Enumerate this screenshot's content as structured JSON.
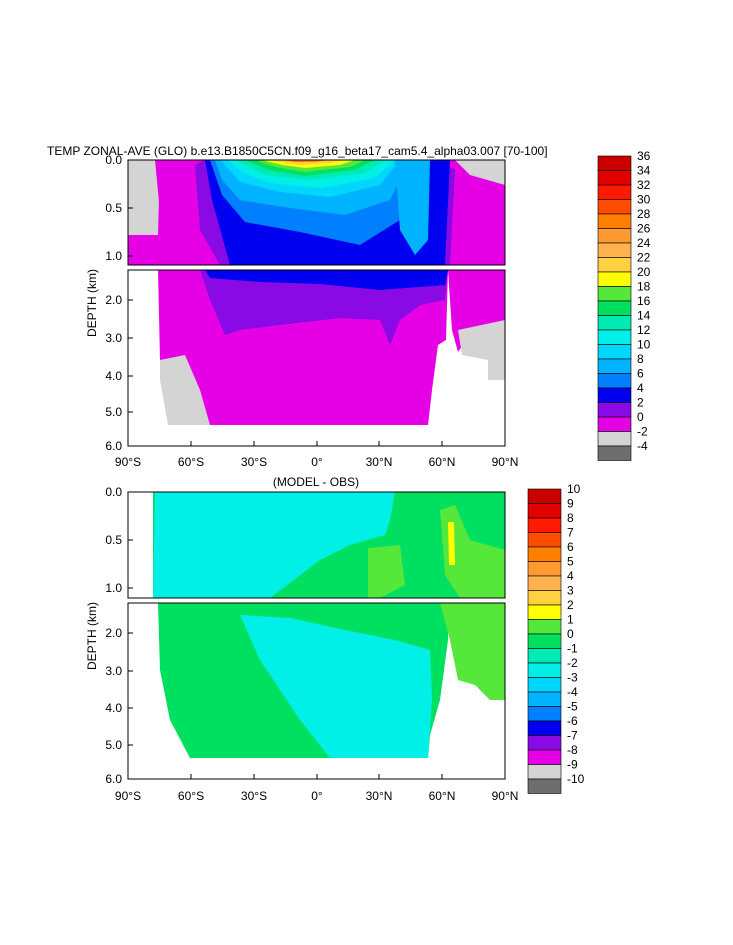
{
  "chart_data": [
    {
      "type": "heatmap",
      "title": "TEMP ZONAL-AVE (GLO) b.e13.B1850C5CN.f09_g16_beta17_cam5.4_alpha03.007 [70-100]",
      "ylabel": "DEPTH (km)",
      "x_ticks": [
        "90°S",
        "60°S",
        "30°S",
        "0°",
        "30°N",
        "60°N",
        "90°N"
      ],
      "y_ticks_upper": [
        "0.0",
        "0.5",
        "1.0"
      ],
      "y_ticks_lower": [
        "2.0",
        "3.0",
        "4.0",
        "5.0",
        "6.0"
      ],
      "xlim": [
        -90,
        90
      ],
      "ylim_km": [
        0,
        6
      ],
      "colorbar": {
        "levels": [
          "36",
          "34",
          "32",
          "30",
          "28",
          "26",
          "24",
          "22",
          "20",
          "18",
          "16",
          "14",
          "12",
          "10",
          "8",
          "6",
          "4",
          "2",
          "0",
          "-2",
          "-4"
        ],
        "colors": [
          "#c80000",
          "#e30000",
          "#ff1a00",
          "#ff4d00",
          "#ff8000",
          "#ff9a33",
          "#ffb24d",
          "#ffd040",
          "#ffff00",
          "#55e83a",
          "#00e060",
          "#00ebb4",
          "#00f0e8",
          "#00d7ff",
          "#00b3ff",
          "#0080ff",
          "#0000f0",
          "#8a0ae6",
          "#e600e6",
          "#d4d4d4",
          "#6e6e6e"
        ]
      }
    },
    {
      "type": "heatmap",
      "title": "(MODEL - OBS)",
      "ylabel": "DEPTH (km)",
      "x_ticks": [
        "90°S",
        "60°S",
        "30°S",
        "0°",
        "30°N",
        "60°N",
        "90°N"
      ],
      "y_ticks_upper": [
        "0.0",
        "0.5",
        "1.0"
      ],
      "y_ticks_lower": [
        "2.0",
        "3.0",
        "4.0",
        "5.0",
        "6.0"
      ],
      "xlim": [
        -90,
        90
      ],
      "ylim_km": [
        0,
        6
      ],
      "colorbar": {
        "levels": [
          "10",
          "9",
          "8",
          "7",
          "6",
          "5",
          "4",
          "3",
          "2",
          "1",
          "0",
          "-1",
          "-2",
          "-3",
          "-4",
          "-5",
          "-6",
          "-7",
          "-8",
          "-9",
          "-10"
        ],
        "colors": [
          "#c80000",
          "#e30000",
          "#ff1a00",
          "#ff4d00",
          "#ff8000",
          "#ff9a33",
          "#ffb24d",
          "#ffd040",
          "#ffff00",
          "#55e83a",
          "#00e060",
          "#00ebb4",
          "#00f0e8",
          "#00d7ff",
          "#00b3ff",
          "#0080ff",
          "#0000f0",
          "#8a0ae6",
          "#e600e6",
          "#d4d4d4",
          "#6e6e6e"
        ]
      }
    }
  ]
}
